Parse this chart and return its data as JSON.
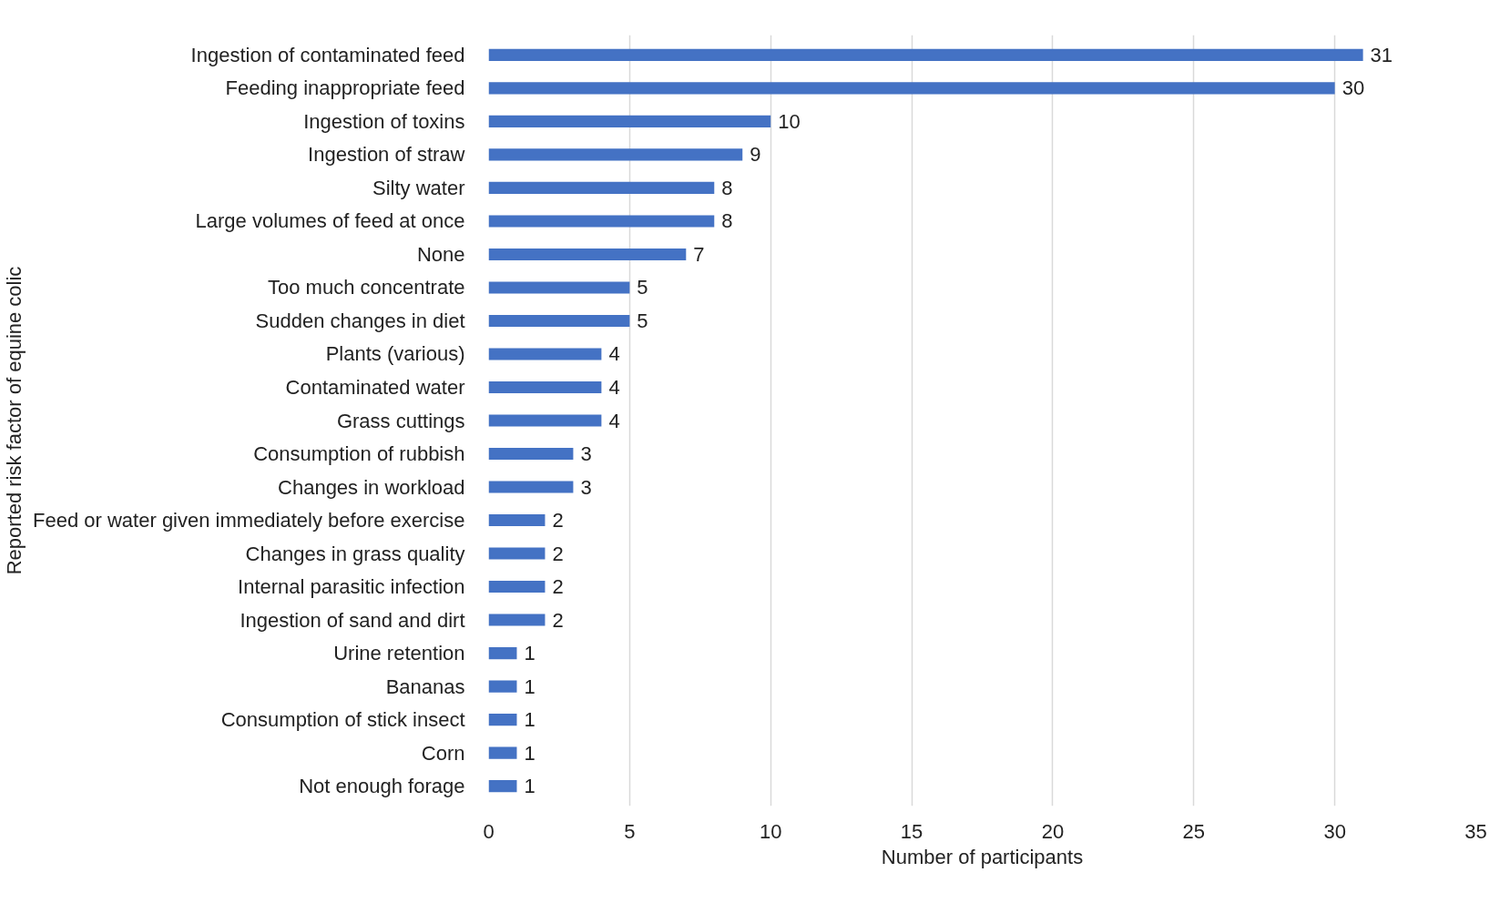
{
  "chart_data": {
    "type": "bar",
    "orientation": "horizontal",
    "xlabel": "Number of participants",
    "ylabel": "Reported risk factor of equine colic",
    "categories": [
      "Ingestion of contaminated feed",
      "Feeding inappropriate feed",
      "Ingestion of toxins",
      "Ingestion of straw",
      "Silty water",
      "Large volumes of feed at once",
      "None",
      "Too much concentrate",
      "Sudden changes in diet",
      "Plants (various)",
      "Contaminated water",
      "Grass cuttings",
      "Consumption of rubbish",
      "Changes in workload",
      "Feed or water given immediately before exercise",
      "Changes in grass quality",
      "Internal parasitic infection",
      "Ingestion of sand and dirt",
      "Urine retention",
      "Bananas",
      "Consumption of stick insect",
      "Corn",
      "Not enough forage"
    ],
    "values": [
      31,
      30,
      10,
      9,
      8,
      8,
      7,
      5,
      5,
      4,
      4,
      4,
      3,
      3,
      2,
      2,
      2,
      2,
      1,
      1,
      1,
      1,
      1
    ],
    "color": "#4472c4",
    "xlim": [
      0,
      35
    ],
    "xticks": [
      0,
      5,
      10,
      15,
      20,
      25,
      30,
      35
    ],
    "grid": "x",
    "data_labels": true
  }
}
